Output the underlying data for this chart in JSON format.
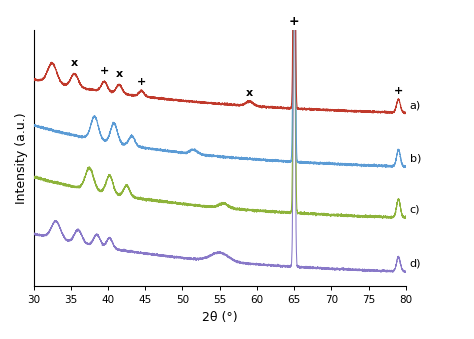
{
  "xlim": [
    30,
    80
  ],
  "ylabel": "Intensity (a.u.)",
  "xlabel": "2θ (°)",
  "xticks": [
    30,
    35,
    40,
    45,
    50,
    55,
    60,
    65,
    70,
    75,
    80
  ],
  "curve_colors": [
    "#c0392b",
    "#5b9bd5",
    "#8db33a",
    "#8878c8"
  ],
  "curve_labels": [
    "a)",
    "b)",
    "c)",
    "d)"
  ],
  "offsets": [
    0.72,
    0.5,
    0.29,
    0.07
  ],
  "curve_scale": 0.2,
  "peak65_scale": 0.95,
  "annotation_fontsize": 8,
  "label_fontsize": 8,
  "axis_fontsize": 9
}
